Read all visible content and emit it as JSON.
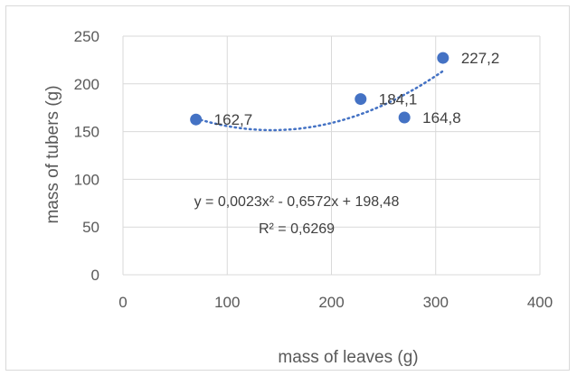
{
  "chart_data": {
    "type": "scatter",
    "xlabel": "mass of leaves (g)",
    "ylabel": "mass of tubers (g)",
    "xlim": [
      0,
      400
    ],
    "ylim": [
      0,
      250
    ],
    "xticks": [
      0,
      100,
      200,
      300,
      400
    ],
    "yticks": [
      0,
      50,
      100,
      150,
      200,
      250
    ],
    "xtick_labels": [
      "0",
      "100",
      "200",
      "300",
      "400"
    ],
    "ytick_labels": [
      "0",
      "50",
      "100",
      "150",
      "200",
      "250"
    ],
    "grid": true,
    "legend": "none",
    "marker_color": "#4472C4",
    "trendline_color": "#4472C4",
    "points": [
      {
        "x": 70,
        "y": 162.7,
        "label": "162,7"
      },
      {
        "x": 228,
        "y": 184.1,
        "label": "184,1"
      },
      {
        "x": 270,
        "y": 164.8,
        "label": "164,8"
      },
      {
        "x": 307,
        "y": 227.2,
        "label": "227,2"
      }
    ],
    "trendline": {
      "type": "polynomial",
      "order": 2,
      "coefficients": [
        0.0023,
        -0.6572,
        198.48
      ],
      "x_range": [
        70,
        307
      ],
      "equation": "y = 0,0023x² - 0,6572x + 198,48",
      "r_squared": "R² = 0,6269"
    }
  }
}
